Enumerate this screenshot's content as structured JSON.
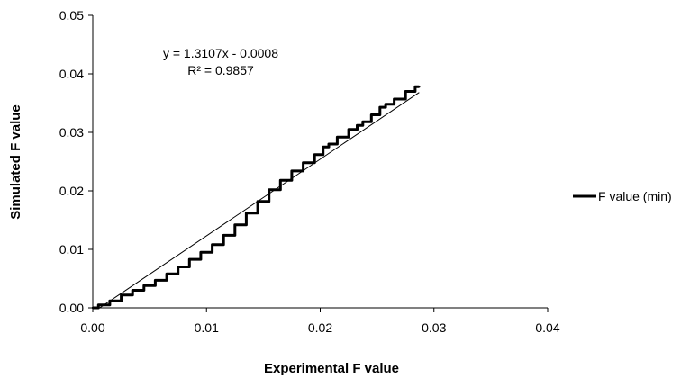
{
  "chart_data": {
    "type": "line",
    "title": "",
    "xlabel": "Experimental F value",
    "ylabel": "Simulated F value",
    "xlim": [
      0,
      0.04
    ],
    "ylim": [
      0,
      0.05
    ],
    "x_ticks": [
      "0.00",
      "0.01",
      "0.02",
      "0.03",
      "0.04"
    ],
    "y_ticks": [
      "0.00",
      "0.01",
      "0.02",
      "0.03",
      "0.04",
      "0.05"
    ],
    "grid": false,
    "legend_position": "right",
    "annotations": [
      "y = 1.3107x - 0.0008",
      "R² = 0.9857"
    ],
    "series": [
      {
        "name": "F value (min)",
        "color": "#000000",
        "x": [
          0,
          0.001,
          0.002,
          0.003,
          0.004,
          0.005,
          0.006,
          0.007,
          0.008,
          0.009,
          0.01,
          0.011,
          0.012,
          0.013,
          0.014,
          0.015,
          0.016,
          0.017,
          0.018,
          0.019,
          0.02,
          0.0205,
          0.021,
          0.022,
          0.023,
          0.0235,
          0.024,
          0.025,
          0.0255,
          0.026,
          0.027,
          0.028,
          0.0287
        ],
        "y": [
          0,
          0.0005,
          0.0012,
          0.0022,
          0.003,
          0.0038,
          0.0047,
          0.0058,
          0.007,
          0.0083,
          0.0095,
          0.0108,
          0.0124,
          0.0142,
          0.0162,
          0.0182,
          0.0202,
          0.0218,
          0.0234,
          0.0248,
          0.0262,
          0.0275,
          0.028,
          0.0292,
          0.0305,
          0.0312,
          0.0318,
          0.033,
          0.0343,
          0.0348,
          0.0357,
          0.037,
          0.0378
        ]
      },
      {
        "name": "",
        "role": "linear trendline",
        "color": "#000000",
        "slope": 1.3107,
        "intercept": -0.0008,
        "x_range": [
          0.0006,
          0.0287
        ]
      }
    ]
  }
}
